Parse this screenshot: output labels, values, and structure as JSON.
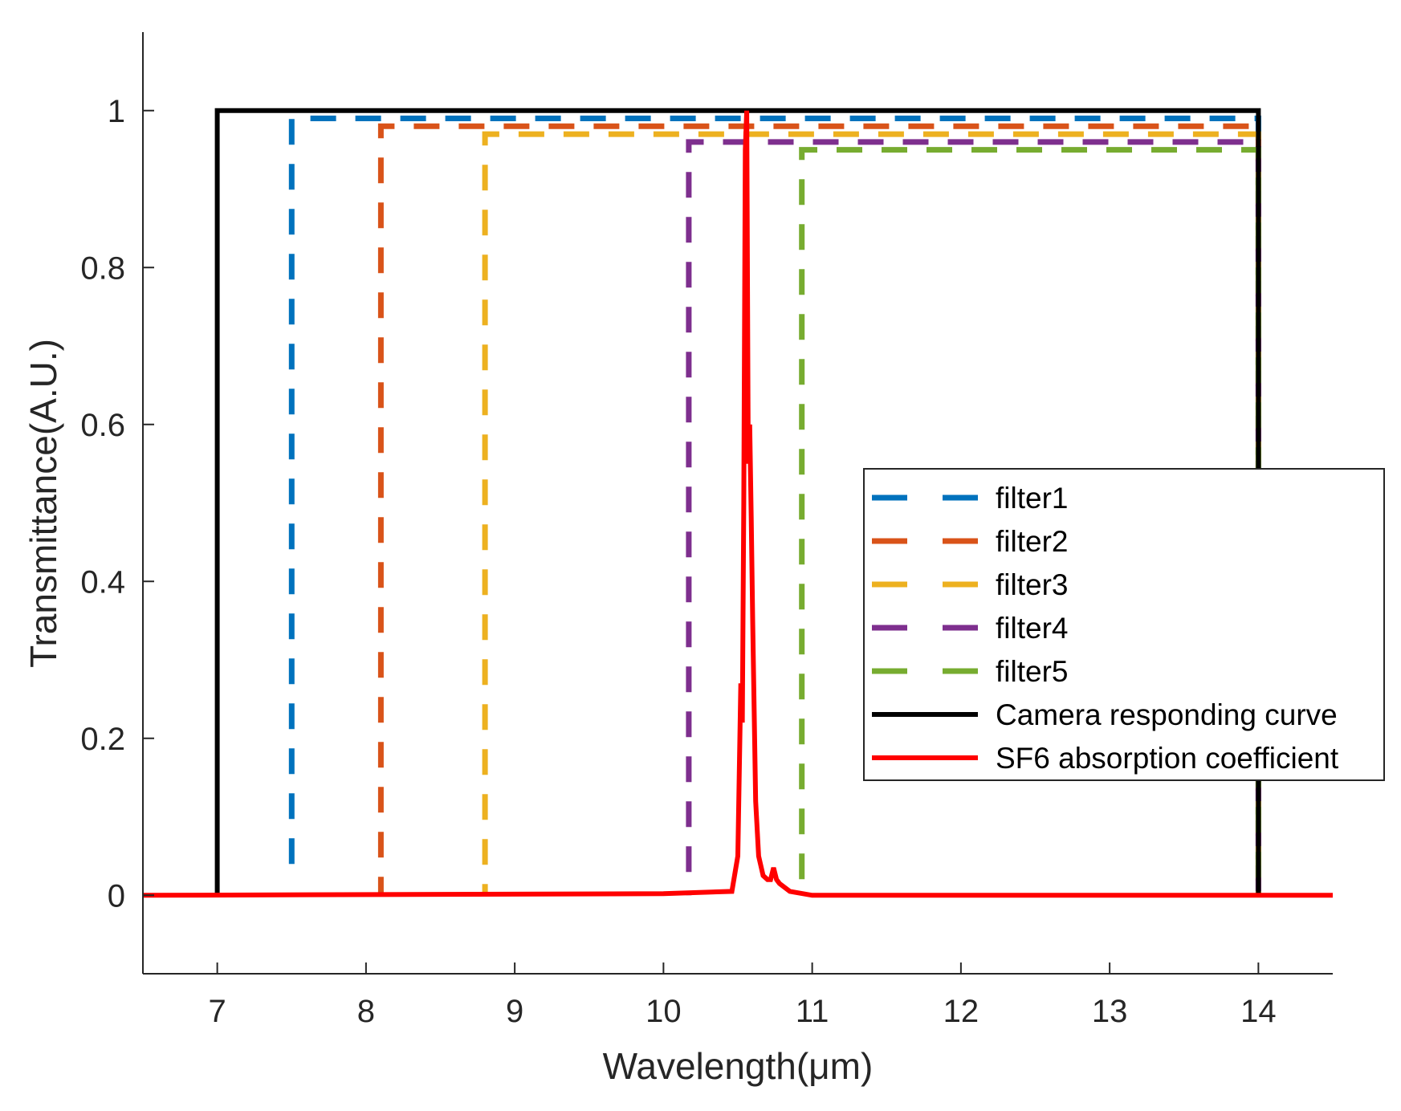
{
  "chart_data": {
    "type": "line",
    "title": "",
    "xlabel": "Wavelength(μm)",
    "ylabel": "Transmittance(A.U.)",
    "xlim": [
      6.5,
      14.5
    ],
    "ylim": [
      -0.1,
      1.1
    ],
    "xticks": [
      7,
      8,
      9,
      10,
      11,
      12,
      13,
      14
    ],
    "yticks": [
      0,
      0.2,
      0.4,
      0.6,
      0.8,
      1
    ],
    "xtick_labels": [
      "7",
      "8",
      "9",
      "10",
      "11",
      "12",
      "13",
      "14"
    ],
    "ytick_labels": [
      "0",
      "0.2",
      "0.4",
      "0.6",
      "0.8",
      "1"
    ],
    "grid": false,
    "legend_position": "right",
    "series": [
      {
        "name": "filter1",
        "color": "#0072BD",
        "style": "dashed",
        "x": [
          7.5,
          7.5,
          14.0,
          14.0
        ],
        "y": [
          0.04,
          0.99,
          0.99,
          0.0
        ]
      },
      {
        "name": "filter2",
        "color": "#D95319",
        "style": "dashed",
        "x": [
          8.1,
          8.1,
          14.0,
          14.0
        ],
        "y": [
          0.0,
          0.98,
          0.98,
          0.0
        ]
      },
      {
        "name": "filter3",
        "color": "#EDB120",
        "style": "dashed",
        "x": [
          8.8,
          8.8,
          14.0,
          14.0
        ],
        "y": [
          0.0,
          0.97,
          0.97,
          0.0
        ]
      },
      {
        "name": "filter4",
        "color": "#7E2F8E",
        "style": "dashed",
        "x": [
          10.17,
          10.17,
          14.0,
          14.0
        ],
        "y": [
          0.0,
          0.96,
          0.96,
          0.0
        ]
      },
      {
        "name": "filter5",
        "color": "#77AC30",
        "style": "dashed",
        "x": [
          10.93,
          10.93,
          14.0,
          14.0
        ],
        "y": [
          0.0,
          0.95,
          0.95,
          0.0
        ]
      },
      {
        "name": "Camera responding curve",
        "color": "#000000",
        "style": "solid",
        "x": [
          7.0,
          7.0,
          14.0,
          14.0
        ],
        "y": [
          0.0,
          1.0,
          1.0,
          0.0
        ]
      },
      {
        "name": "SF6 absorption coefficient",
        "color": "#FF0000",
        "style": "solid",
        "x": [
          6.5,
          10.0,
          10.46,
          10.5,
          10.52,
          10.53,
          10.54,
          10.55,
          10.56,
          10.57,
          10.58,
          10.59,
          10.6,
          10.62,
          10.64,
          10.67,
          10.7,
          10.72,
          10.74,
          10.76,
          10.78,
          10.85,
          11.0,
          14.5
        ],
        "y": [
          0.0,
          0.002,
          0.005,
          0.05,
          0.27,
          0.22,
          0.5,
          0.95,
          1.0,
          0.55,
          0.6,
          0.48,
          0.35,
          0.12,
          0.05,
          0.025,
          0.02,
          0.02,
          0.035,
          0.02,
          0.015,
          0.005,
          0.0,
          0.0
        ]
      }
    ]
  }
}
